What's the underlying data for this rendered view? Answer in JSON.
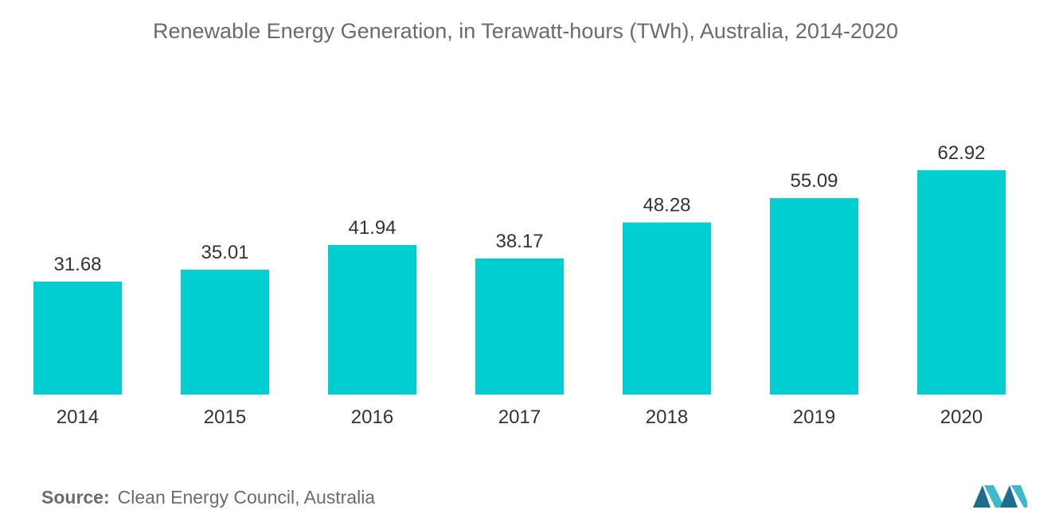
{
  "chart_data": {
    "type": "bar",
    "title": "Renewable Energy Generation, in Terawatt-hours (TWh), Australia, 2014-2020",
    "xlabel": "",
    "ylabel": "",
    "categories": [
      "2014",
      "2015",
      "2016",
      "2017",
      "2018",
      "2019",
      "2020"
    ],
    "values": [
      31.68,
      35.01,
      41.94,
      38.17,
      48.28,
      55.09,
      62.92
    ],
    "value_labels": [
      "31.68",
      "35.01",
      "41.94",
      "38.17",
      "48.28",
      "55.09",
      "62.92"
    ],
    "ylim": [
      0,
      63
    ],
    "grid": false,
    "legend": "none",
    "bar_color": "#00CED1"
  },
  "source": {
    "prefix": "Source:",
    "text": "Clean Energy Council, Australia"
  },
  "logo": {
    "icon": "mordor-intelligence-logo-icon",
    "color_dark": "#1a6d8c",
    "color_light": "#3fb8c9"
  }
}
